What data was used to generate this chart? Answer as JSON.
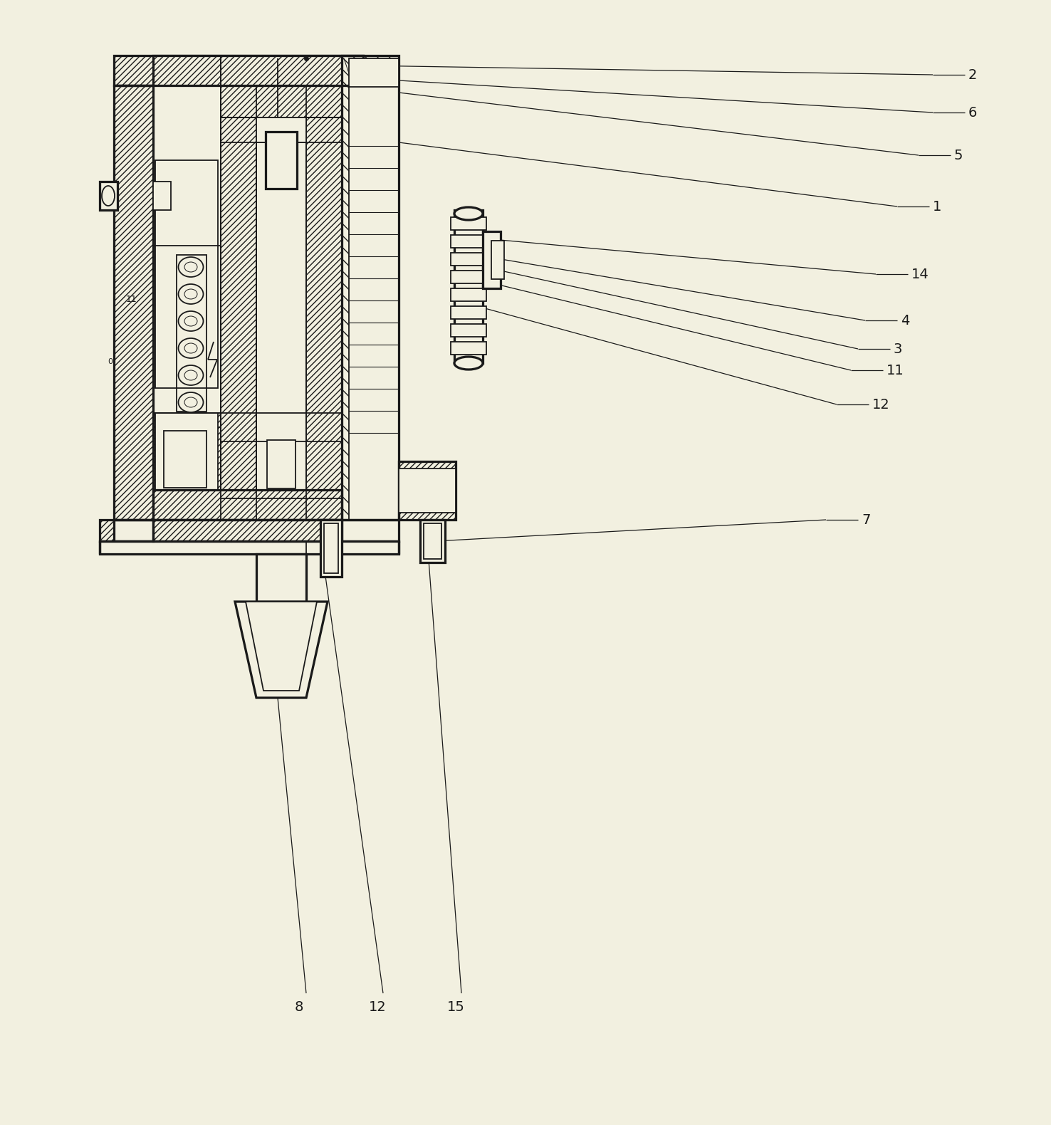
{
  "bg_color": "#f2f0e0",
  "line_color": "#1a1a1a",
  "lw": 1.3,
  "label_font_size": 14
}
